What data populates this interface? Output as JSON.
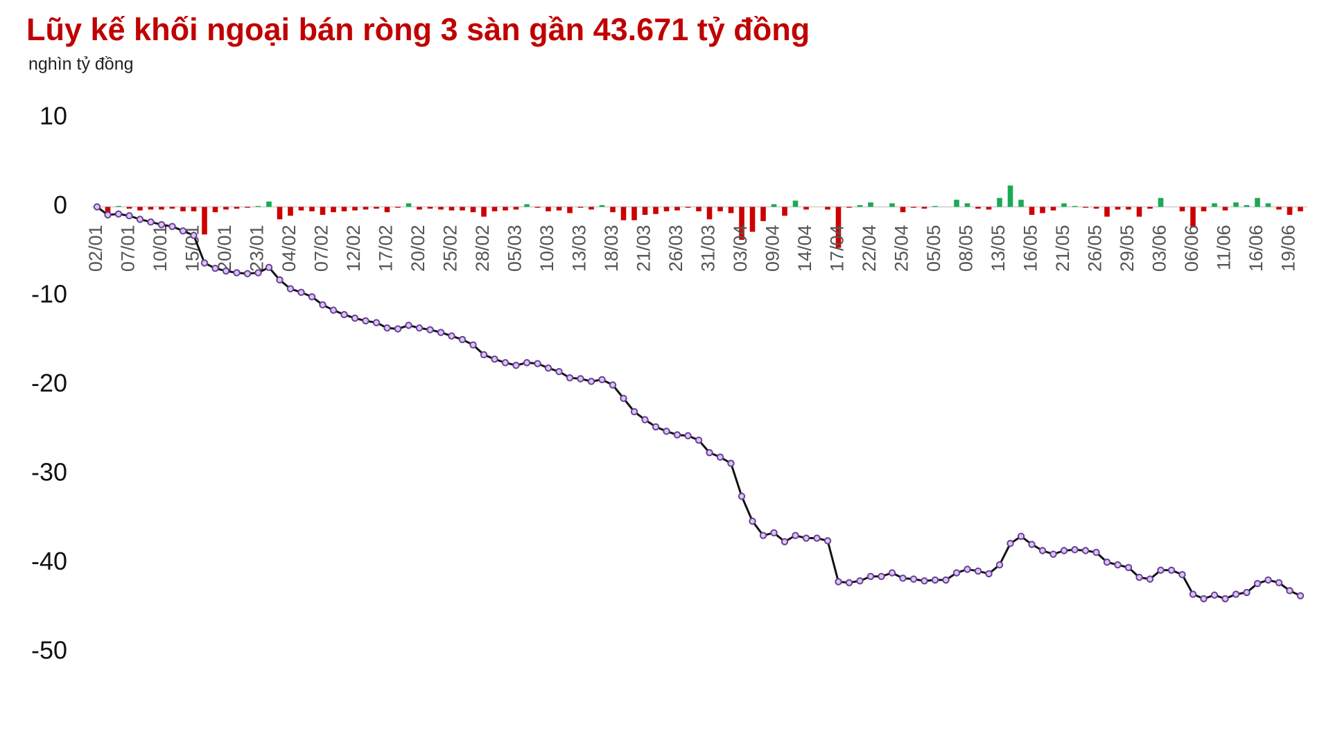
{
  "chart_data": {
    "type": "combo",
    "title": "Lũy kế khối ngoại bán ròng 3 sàn gần 43.671 tỷ đồng",
    "y_label": "nghìn tỷ đồng",
    "categories": [
      "02/01",
      null,
      null,
      "07/01",
      null,
      null,
      "10/01",
      null,
      null,
      "15/01",
      null,
      null,
      "20/01",
      null,
      null,
      "23/01",
      null,
      null,
      "04/02",
      null,
      null,
      "07/02",
      null,
      null,
      "12/02",
      null,
      null,
      "17/02",
      null,
      null,
      "20/02",
      null,
      null,
      "25/02",
      null,
      null,
      "28/02",
      null,
      null,
      "05/03",
      null,
      null,
      "10/03",
      null,
      null,
      "13/03",
      null,
      null,
      "18/03",
      null,
      null,
      "21/03",
      null,
      null,
      "26/03",
      null,
      null,
      "31/03",
      null,
      null,
      "03/04",
      null,
      null,
      "09/04",
      null,
      null,
      "14/04",
      null,
      null,
      "17/04",
      null,
      null,
      "22/04",
      null,
      null,
      "25/04",
      null,
      null,
      "05/05",
      null,
      null,
      "08/05",
      null,
      null,
      "13/05",
      null,
      null,
      "16/05",
      null,
      null,
      "21/05",
      null,
      null,
      "26/05",
      null,
      null,
      "29/05",
      null,
      null,
      "03/06",
      null,
      null,
      "06/06",
      null,
      null,
      "11/06",
      null,
      null,
      "16/06",
      null,
      null,
      "19/06",
      null
    ],
    "ylim": [
      -50,
      10
    ],
    "yticks": [
      10,
      0,
      -10,
      -20,
      -30,
      -40,
      -50
    ],
    "series": [
      {
        "type": "bar",
        "positive_color": "#1aaa55",
        "negative_color": "#cc0000",
        "values": [
          0,
          -0.9,
          0.1,
          -0.2,
          -0.4,
          -0.3,
          -0.3,
          -0.2,
          -0.5,
          -0.5,
          -3.1,
          -0.6,
          -0.3,
          -0.2,
          -0.1,
          0.1,
          0.6,
          -1.4,
          -1.0,
          -0.4,
          -0.5,
          -0.9,
          -0.6,
          -0.5,
          -0.4,
          -0.3,
          -0.2,
          -0.6,
          -0.1,
          0.4,
          -0.3,
          -0.2,
          -0.3,
          -0.4,
          -0.4,
          -0.6,
          -1.1,
          -0.5,
          -0.4,
          -0.3,
          0.3,
          -0.1,
          -0.5,
          -0.4,
          -0.7,
          -0.1,
          -0.3,
          0.2,
          -0.6,
          -1.5,
          -1.5,
          -0.9,
          -0.8,
          -0.5,
          -0.4,
          -0.1,
          -0.5,
          -1.4,
          -0.5,
          -0.7,
          -3.7,
          -2.8,
          -1.6,
          0.3,
          -1.0,
          0.7,
          -0.3,
          0,
          -0.3,
          -4.6,
          -0.1,
          0.2,
          0.5,
          0,
          0.4,
          -0.6,
          -0.1,
          -0.2,
          0.1,
          0,
          0.8,
          0.4,
          -0.2,
          -0.3,
          1.0,
          2.4,
          0.8,
          -0.9,
          -0.7,
          -0.4,
          0.4,
          0.1,
          -0.1,
          -0.2,
          -1.1,
          -0.3,
          -0.3,
          -1.1,
          -0.2,
          1.0,
          0,
          -0.5,
          -2.2,
          -0.5,
          0.4,
          -0.4,
          0.5,
          0.2,
          1.0,
          0.4,
          -0.3,
          -0.9,
          -0.5
        ]
      },
      {
        "type": "line",
        "color": "#111111",
        "marker_color": "#6a3d9a",
        "values": [
          0,
          -0.9,
          -0.8,
          -1.0,
          -1.4,
          -1.7,
          -2.0,
          -2.2,
          -2.7,
          -3.2,
          -6.3,
          -6.9,
          -7.2,
          -7.4,
          -7.5,
          -7.4,
          -6.8,
          -8.2,
          -9.2,
          -9.6,
          -10.1,
          -11.0,
          -11.6,
          -12.1,
          -12.5,
          -12.8,
          -13.0,
          -13.6,
          -13.7,
          -13.3,
          -13.6,
          -13.8,
          -14.1,
          -14.5,
          -14.9,
          -15.5,
          -16.6,
          -17.1,
          -17.5,
          -17.8,
          -17.5,
          -17.6,
          -18.1,
          -18.5,
          -19.2,
          -19.3,
          -19.6,
          -19.4,
          -20.0,
          -21.5,
          -23.0,
          -23.9,
          -24.7,
          -25.2,
          -25.6,
          -25.7,
          -26.2,
          -27.6,
          -28.1,
          -28.8,
          -32.5,
          -35.3,
          -36.9,
          -36.6,
          -37.6,
          -36.9,
          -37.2,
          -37.2,
          -37.5,
          -42.1,
          -42.2,
          -42.0,
          -41.5,
          -41.5,
          -41.1,
          -41.7,
          -41.8,
          -42.0,
          -41.9,
          -41.9,
          -41.1,
          -40.7,
          -40.9,
          -41.2,
          -40.2,
          -37.8,
          -37.0,
          -37.9,
          -38.6,
          -39.0,
          -38.6,
          -38.5,
          -38.6,
          -38.8,
          -39.9,
          -40.2,
          -40.5,
          -41.6,
          -41.8,
          -40.8,
          -40.8,
          -41.3,
          -43.5,
          -44.0,
          -43.6,
          -44.0,
          -43.5,
          -43.3,
          -42.3,
          -41.9,
          -42.2,
          -43.1,
          -43.67
        ]
      }
    ]
  }
}
